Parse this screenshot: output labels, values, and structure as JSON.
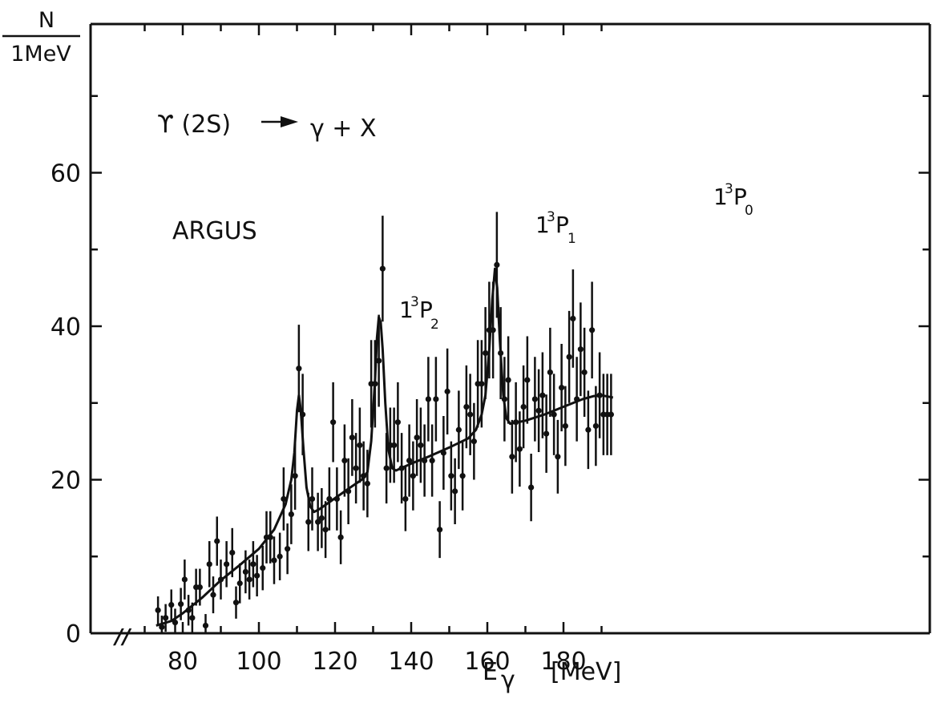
{
  "chart_data": {
    "type": "scatter",
    "ylabel_num": "N",
    "ylabel_den": "1MeV",
    "xlabel_main": "E",
    "xlabel_sub": "γ",
    "xlabel_unit": "[MeV]",
    "xlim": [
      63,
      198
    ],
    "ylim": [
      0,
      80
    ],
    "xticks": [
      80,
      100,
      120,
      140,
      160,
      180
    ],
    "yticks": [
      0,
      20,
      40,
      60
    ],
    "axis_break": "//",
    "annotations": {
      "reaction_left": "ϒ (2S)",
      "reaction_right": "γ + X",
      "experiment": "ARGUS",
      "peak1": {
        "prefix": "1",
        "sup": "3",
        "letter": "P",
        "sub": "2"
      },
      "peak2": {
        "prefix": "1",
        "sup": "3",
        "letter": "P",
        "sub": "1"
      },
      "peak3": {
        "prefix": "1",
        "sup": "3",
        "letter": "P",
        "sub": "0"
      }
    },
    "points": [
      [
        73.5,
        3,
        1.8
      ],
      [
        74.5,
        0.8,
        1.5
      ],
      [
        75.5,
        2,
        1.8
      ],
      [
        77,
        3.7,
        2
      ],
      [
        78,
        1.4,
        1.8
      ],
      [
        79.5,
        3.8,
        2.1
      ],
      [
        80.5,
        7,
        2.6
      ],
      [
        81.5,
        3,
        2
      ],
      [
        82.5,
        2,
        2
      ],
      [
        83.5,
        6,
        2.4
      ],
      [
        84.5,
        6,
        2.4
      ],
      [
        86,
        1,
        1.5
      ],
      [
        87,
        9,
        3
      ],
      [
        88,
        5,
        2.4
      ],
      [
        89,
        12,
        3.2
      ],
      [
        90,
        7,
        2.6
      ],
      [
        91.5,
        9,
        3
      ],
      [
        93,
        10.5,
        3.2
      ],
      [
        94,
        4,
        2.1
      ],
      [
        95,
        6.5,
        2.6
      ],
      [
        96.5,
        8,
        2.8
      ],
      [
        97.5,
        7,
        2.6
      ],
      [
        98.5,
        9,
        3
      ],
      [
        99.5,
        7.5,
        2.7
      ],
      [
        101,
        8.5,
        2.9
      ],
      [
        102,
        12.5,
        3.4
      ],
      [
        103,
        12.5,
        3.4
      ],
      [
        104,
        9.5,
        3.1
      ],
      [
        105.5,
        10,
        3.1
      ],
      [
        106.5,
        17.5,
        4.1
      ],
      [
        107.5,
        11,
        3.3
      ],
      [
        108.5,
        15.5,
        3.9
      ],
      [
        109.5,
        20.5,
        4.4
      ],
      [
        110.5,
        34.5,
        5.7
      ],
      [
        111.5,
        28.5,
        5.3
      ],
      [
        113,
        14.5,
        3.8
      ],
      [
        114,
        17.5,
        4.1
      ],
      [
        115.5,
        14.5,
        3.8
      ],
      [
        116.5,
        15,
        3.9
      ],
      [
        117.5,
        13.5,
        3.7
      ],
      [
        118.5,
        17.5,
        4.1
      ],
      [
        119.5,
        27.5,
        5.2
      ],
      [
        120.5,
        17.5,
        4.1
      ],
      [
        121.5,
        12.5,
        3.5
      ],
      [
        122.5,
        22.5,
        4.7
      ],
      [
        123.5,
        18.5,
        4.3
      ],
      [
        124.5,
        25.5,
        5
      ],
      [
        125.5,
        21.5,
        4.6
      ],
      [
        126.5,
        24.5,
        4.9
      ],
      [
        127.5,
        20.5,
        4.5
      ],
      [
        128.5,
        19.5,
        4.4
      ],
      [
        129.5,
        32.5,
        5.7
      ],
      [
        130.5,
        32.5,
        5.7
      ],
      [
        131.5,
        35.5,
        6
      ],
      [
        132.5,
        47.5,
        6.9
      ],
      [
        133.5,
        21.5,
        4.6
      ],
      [
        134.5,
        24.5,
        4.9
      ],
      [
        135.5,
        24.5,
        4.9
      ],
      [
        136.5,
        27.5,
        5.2
      ],
      [
        137.5,
        21.5,
        4.6
      ],
      [
        138.5,
        17.5,
        4.2
      ],
      [
        139.5,
        22.5,
        4.7
      ],
      [
        140.5,
        20.5,
        4.5
      ],
      [
        141.5,
        25.5,
        5
      ],
      [
        142.5,
        24.5,
        4.9
      ],
      [
        143.5,
        22.5,
        4.7
      ],
      [
        144.5,
        30.5,
        5.5
      ],
      [
        145.5,
        22.5,
        4.7
      ],
      [
        146.5,
        30.5,
        5.5
      ],
      [
        147.5,
        13.5,
        3.7
      ],
      [
        148.5,
        23.5,
        4.8
      ],
      [
        149.5,
        31.5,
        5.6
      ],
      [
        150.5,
        20.5,
        4.5
      ],
      [
        151.5,
        18.5,
        4.3
      ],
      [
        152.5,
        26.5,
        5.1
      ],
      [
        153.5,
        20.5,
        4.5
      ],
      [
        154.5,
        29.5,
        5.4
      ],
      [
        155.5,
        28.5,
        5.3
      ],
      [
        156.5,
        25,
        5
      ],
      [
        157.5,
        32.5,
        5.7
      ],
      [
        158.5,
        32.5,
        5.7
      ],
      [
        159.5,
        36.5,
        6
      ],
      [
        160.5,
        39.5,
        6.3
      ],
      [
        161.5,
        39.5,
        6.3
      ],
      [
        162.5,
        48,
        6.9
      ],
      [
        163.5,
        36.5,
        6
      ],
      [
        164.5,
        30.5,
        5.5
      ],
      [
        165.5,
        33,
        5.7
      ],
      [
        166.5,
        23,
        4.8
      ],
      [
        167.5,
        27.5,
        5.2
      ],
      [
        168.5,
        24,
        4.9
      ],
      [
        169.5,
        29.5,
        5.4
      ],
      [
        170.5,
        33,
        5.7
      ],
      [
        171.5,
        19,
        4.4
      ],
      [
        172.5,
        30.5,
        5.5
      ],
      [
        173.5,
        29,
        5.4
      ],
      [
        174.5,
        31,
        5.6
      ],
      [
        175.5,
        26,
        5.1
      ],
      [
        176.5,
        34,
        5.8
      ],
      [
        177.5,
        28.5,
        5.3
      ],
      [
        178.5,
        23,
        4.8
      ],
      [
        179.5,
        32,
        5.7
      ],
      [
        180.5,
        27,
        5.2
      ],
      [
        181.5,
        36,
        6
      ],
      [
        182.5,
        41,
        6.4
      ],
      [
        183.5,
        30.5,
        5.5
      ],
      [
        184.5,
        37,
        6.1
      ],
      [
        185.5,
        34,
        5.8
      ],
      [
        186.5,
        26.5,
        5.1
      ],
      [
        187.5,
        39.5,
        6.3
      ],
      [
        188.5,
        27,
        5.2
      ],
      [
        189.5,
        31,
        5.6
      ],
      [
        190.5,
        28.5,
        5.3
      ],
      [
        191.5,
        28.5,
        5.3
      ],
      [
        192.5,
        28.5,
        5.3
      ]
    ],
    "fit_curve": [
      [
        73,
        1
      ],
      [
        77,
        1.6
      ],
      [
        80,
        2.6
      ],
      [
        85,
        4.6
      ],
      [
        90,
        6.9
      ],
      [
        95,
        8.9
      ],
      [
        100,
        11
      ],
      [
        104,
        13.5
      ],
      [
        107,
        16.8
      ],
      [
        108.5,
        20
      ],
      [
        109.3,
        23.5
      ],
      [
        110,
        29
      ],
      [
        110.5,
        31
      ],
      [
        111,
        29
      ],
      [
        111.7,
        24
      ],
      [
        112.5,
        19
      ],
      [
        113.5,
        16.5
      ],
      [
        114.5,
        15.8
      ],
      [
        116,
        16.2
      ],
      [
        120,
        17.6
      ],
      [
        124,
        19
      ],
      [
        127,
        20
      ],
      [
        128.5,
        21
      ],
      [
        129.5,
        25
      ],
      [
        130.5,
        33
      ],
      [
        131,
        38.5
      ],
      [
        131.5,
        41.2
      ],
      [
        132,
        40.5
      ],
      [
        132.5,
        37
      ],
      [
        133.2,
        30
      ],
      [
        134,
        24
      ],
      [
        135,
        21.5
      ],
      [
        136,
        21.2
      ],
      [
        140,
        22.1
      ],
      [
        145,
        23.1
      ],
      [
        150,
        24.2
      ],
      [
        155,
        25.4
      ],
      [
        157,
        26.5
      ],
      [
        158.5,
        28.5
      ],
      [
        159.5,
        31
      ],
      [
        160.5,
        37
      ],
      [
        161.3,
        43.5
      ],
      [
        162,
        47.5
      ],
      [
        162.6,
        45
      ],
      [
        163.3,
        38
      ],
      [
        164.2,
        31
      ],
      [
        165,
        28
      ],
      [
        166,
        27.3
      ],
      [
        170,
        27.7
      ],
      [
        175,
        28.5
      ],
      [
        180,
        29.5
      ],
      [
        185,
        30.5
      ],
      [
        188,
        30.9
      ],
      [
        190,
        31
      ],
      [
        193,
        30.7
      ]
    ]
  }
}
